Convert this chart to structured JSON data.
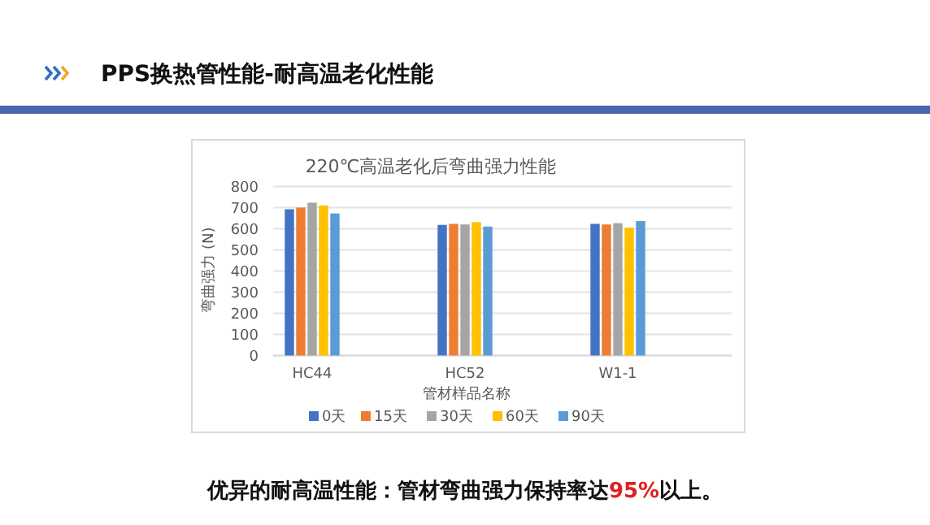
{
  "chart_data": {
    "type": "bar",
    "title": "220℃高温老化后弯曲强力性能",
    "xlabel": "管材样品名称",
    "ylabel": "弯曲强力 (N)",
    "annotations": [
      "PPS换热管性能-耐高温老化性能",
      "优异的耐高温性能：管材弯曲强力保持率达95%以上。"
    ],
    "categories": [
      "HC44",
      "HC52",
      "W1-1"
    ],
    "series": [
      {
        "name": "0天",
        "color": "#4472c4",
        "values": [
          692,
          618,
          623
        ]
      },
      {
        "name": "15天",
        "color": "#ed7d31",
        "values": [
          700,
          623,
          620
        ]
      },
      {
        "name": "30天",
        "color": "#a5a5a5",
        "values": [
          723,
          620,
          626
        ]
      },
      {
        "name": "60天",
        "color": "#ffc000",
        "values": [
          710,
          631,
          605
        ]
      },
      {
        "name": "90天",
        "color": "#5b9bd5",
        "values": [
          672,
          610,
          636
        ]
      }
    ],
    "ylim": [
      0,
      800
    ],
    "yticks": [
      0,
      100,
      200,
      300,
      400,
      500,
      600,
      700,
      800
    ],
    "grid": "y",
    "legend": "bottom"
  }
}
